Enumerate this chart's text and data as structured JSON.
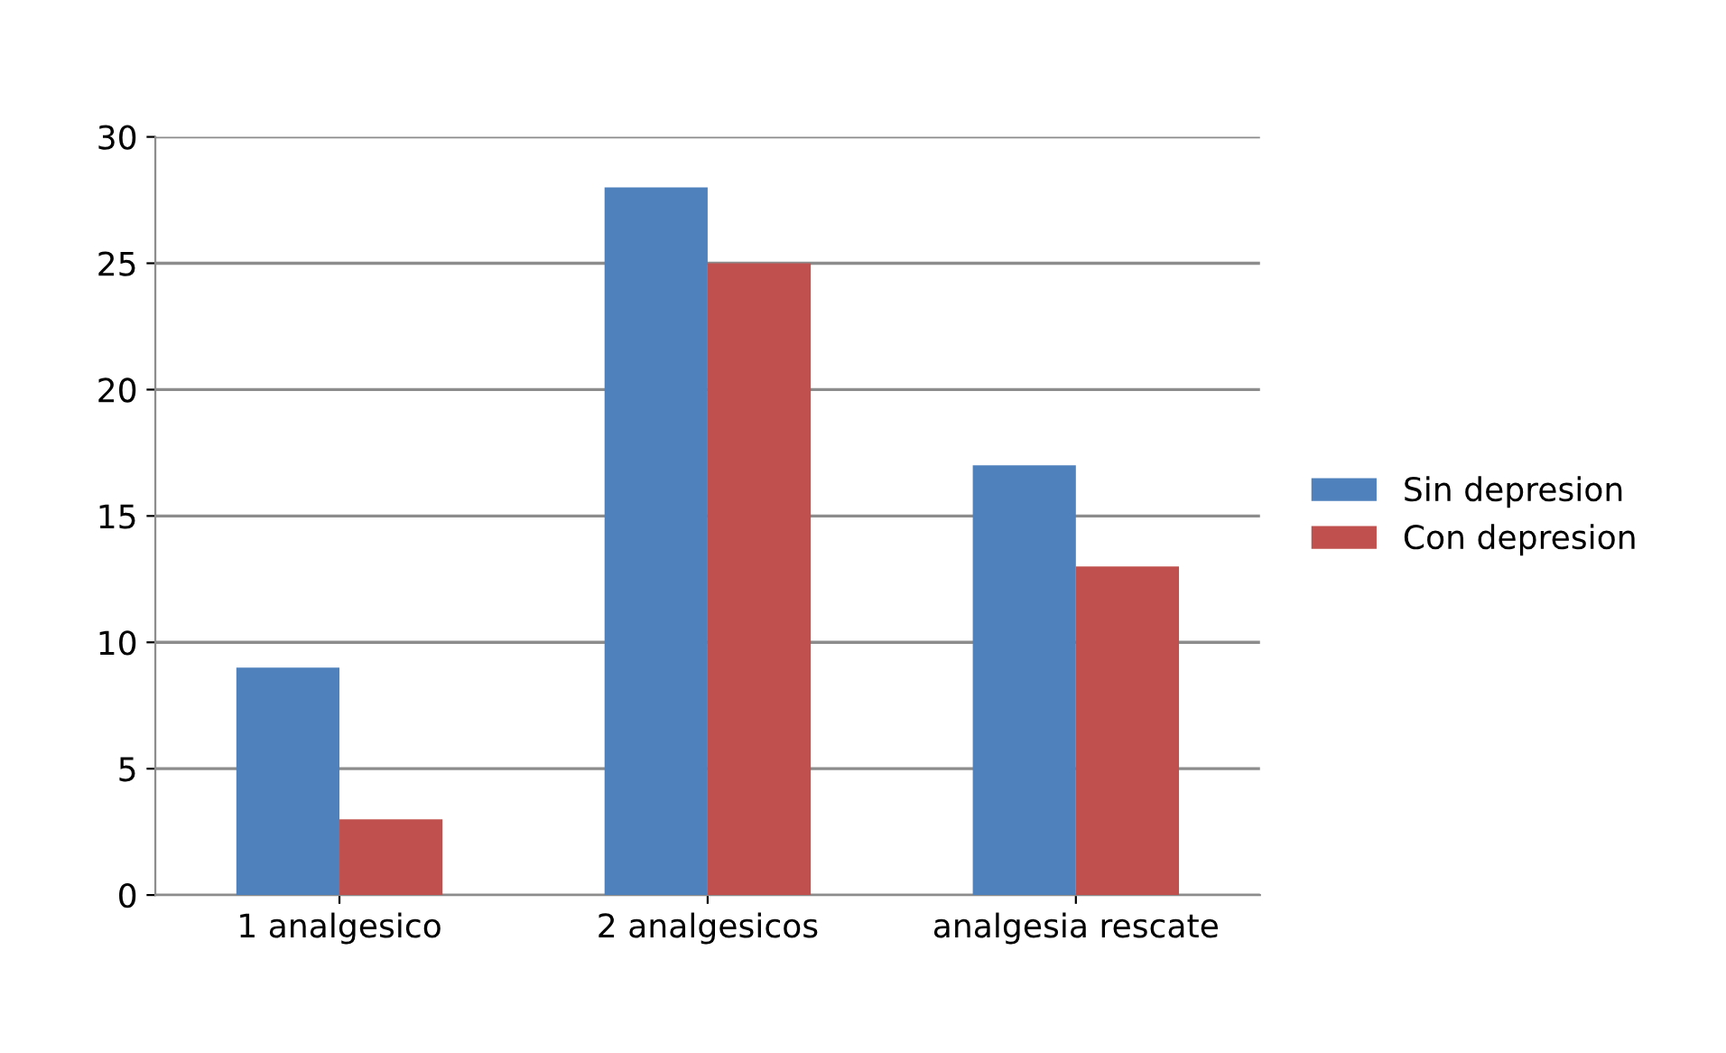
{
  "chart_data": {
    "type": "bar",
    "categories": [
      "1 analgesico",
      "2 analgesicos",
      "analgesia rescate"
    ],
    "series": [
      {
        "name": "Sin depresion",
        "color": "#4f81bd",
        "values": [
          9,
          28,
          17
        ]
      },
      {
        "name": "Con depresion",
        "color": "#c0504d",
        "values": [
          3,
          25,
          13
        ]
      }
    ],
    "ylim": [
      0,
      30
    ],
    "yticks": [
      0,
      5,
      10,
      15,
      20,
      25,
      30
    ],
    "grid": "y",
    "legend": "right"
  }
}
